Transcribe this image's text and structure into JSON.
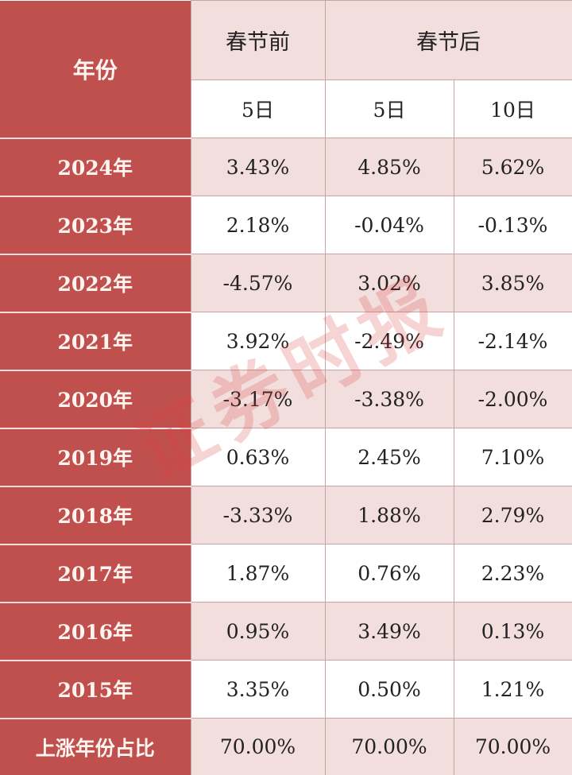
{
  "chart_data": {
    "type": "table",
    "corner_header": "年份",
    "group_headers": [
      "春节前",
      "春节后"
    ],
    "sub_headers": [
      "5日",
      "5日",
      "10日"
    ],
    "rows": [
      {
        "year": "2024年",
        "values": [
          "3.43%",
          "4.85%",
          "5.62%"
        ]
      },
      {
        "year": "2023年",
        "values": [
          "2.18%",
          "-0.04%",
          "-0.13%"
        ]
      },
      {
        "year": "2022年",
        "values": [
          "-4.57%",
          "3.02%",
          "3.85%"
        ]
      },
      {
        "year": "2021年",
        "values": [
          "3.92%",
          "-2.49%",
          "-2.14%"
        ]
      },
      {
        "year": "2020年",
        "values": [
          "-3.17%",
          "-3.38%",
          "-2.00%"
        ]
      },
      {
        "year": "2019年",
        "values": [
          "0.63%",
          "2.45%",
          "7.10%"
        ]
      },
      {
        "year": "2018年",
        "values": [
          "-3.33%",
          "1.88%",
          "2.79%"
        ]
      },
      {
        "year": "2017年",
        "values": [
          "1.87%",
          "0.76%",
          "2.23%"
        ]
      },
      {
        "year": "2016年",
        "values": [
          "0.95%",
          "3.49%",
          "0.13%"
        ]
      },
      {
        "year": "2015年",
        "values": [
          "3.35%",
          "0.50%",
          "1.21%"
        ]
      }
    ],
    "summary": {
      "label": "上涨年份占比",
      "values": [
        "70.00%",
        "70.00%",
        "70.00%"
      ]
    }
  },
  "watermark": "证券时报",
  "colors": {
    "header_red": "#c0504d",
    "row_pink": "#f3dede",
    "row_white": "#ffffff"
  }
}
